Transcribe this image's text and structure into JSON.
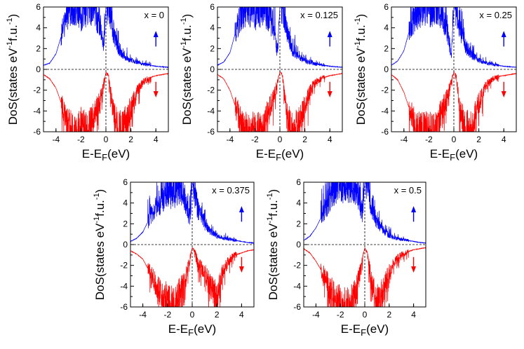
{
  "figure": {
    "xlabel_main": "E-E",
    "xlabel_sub": "F",
    "xlabel_unit": "(eV)",
    "ylabel_main": "DoS(states eV",
    "ylabel_sup1": "-1",
    "ylabel_mid": "f.u.",
    "ylabel_sup2": "-1",
    "ylabel_close": ")"
  },
  "colors": {
    "spin_up": "#0000ff",
    "spin_down": "#ff0000",
    "axis": "#000000"
  },
  "chart_data": [
    {
      "type": "line",
      "label": "x = 0",
      "xlim": [
        -5,
        5
      ],
      "ylim": [
        -6,
        6
      ],
      "xticks": [
        -4,
        -2,
        0,
        2,
        4
      ],
      "yticks": [
        -6,
        -4,
        -2,
        0,
        2,
        4,
        6
      ],
      "arrows": [
        "up",
        "down"
      ],
      "series": [
        {
          "color": "#0000ff",
          "x": [
            -5,
            -4.5,
            -4,
            -3.5,
            -3,
            -2.5,
            -2,
            -1.5,
            -1,
            -0.5,
            -0.2,
            0,
            0.2,
            0.5,
            1,
            1.5,
            2,
            2.5,
            3,
            3.5,
            4,
            4.5,
            5
          ],
          "y": [
            0.4,
            0.6,
            1.5,
            3.5,
            5.8,
            6,
            5.2,
            6,
            5.8,
            4.5,
            2.0,
            6,
            6,
            4.2,
            1.8,
            1.2,
            0.9,
            0.7,
            0.5,
            0.4,
            0.3,
            0.25,
            0.2
          ]
        },
        {
          "color": "#ff0000",
          "x": [
            -5,
            -4.5,
            -4,
            -3.5,
            -3,
            -2.5,
            -2,
            -1.5,
            -1,
            -0.5,
            -0.2,
            0,
            0.2,
            0.5,
            1,
            1.5,
            2,
            2.5,
            3,
            3.5,
            4,
            4.5,
            5
          ],
          "y": [
            -0.5,
            -0.9,
            -1.8,
            -3.5,
            -5.5,
            -6,
            -5.2,
            -6,
            -4.5,
            -3.0,
            -1.5,
            -0.3,
            -0.5,
            -3.5,
            -5.8,
            -5.0,
            -3.8,
            -2.0,
            -1.2,
            -0.8,
            -0.6,
            -0.5,
            -0.4
          ]
        }
      ]
    },
    {
      "type": "line",
      "label": "x = 0.125",
      "xlim": [
        -5,
        5
      ],
      "ylim": [
        -6,
        6
      ],
      "xticks": [
        -4,
        -2,
        0,
        2,
        4
      ],
      "yticks": [
        -6,
        -4,
        -2,
        0,
        2,
        4,
        6
      ],
      "arrows": [
        "up",
        "down"
      ],
      "series": [
        {
          "color": "#0000ff",
          "x": [
            -5,
            -4.5,
            -4,
            -3.5,
            -3,
            -2.5,
            -2,
            -1.5,
            -1,
            -0.5,
            -0.2,
            0,
            0.2,
            0.5,
            1,
            1.5,
            2,
            2.5,
            3,
            3.5,
            4,
            4.5,
            5
          ],
          "y": [
            0.4,
            0.7,
            1.6,
            3.8,
            5.6,
            6,
            5.4,
            6,
            5.5,
            4.0,
            1.5,
            6,
            6,
            4.0,
            1.9,
            1.2,
            0.8,
            0.6,
            0.5,
            0.4,
            0.3,
            0.25,
            0.2
          ]
        },
        {
          "color": "#ff0000",
          "x": [
            -5,
            -4.5,
            -4,
            -3.5,
            -3,
            -2.5,
            -2,
            -1.5,
            -1,
            -0.5,
            -0.2,
            0,
            0.2,
            0.5,
            1,
            1.5,
            2,
            2.5,
            3,
            3.5,
            4,
            4.5,
            5
          ],
          "y": [
            -0.5,
            -0.9,
            -2.0,
            -3.8,
            -5.6,
            -6,
            -5.5,
            -6,
            -4.2,
            -2.8,
            -1.3,
            -0.2,
            -0.6,
            -3.8,
            -5.9,
            -5.2,
            -3.5,
            -1.8,
            -1.1,
            -0.8,
            -0.6,
            -0.5,
            -0.4
          ]
        }
      ]
    },
    {
      "type": "line",
      "label": "x = 0.25",
      "xlim": [
        -5,
        5
      ],
      "ylim": [
        -6,
        6
      ],
      "xticks": [
        -4,
        -2,
        0,
        2,
        4
      ],
      "yticks": [
        -6,
        -4,
        -2,
        0,
        2,
        4,
        6
      ],
      "arrows": [
        "up",
        "down"
      ],
      "series": [
        {
          "color": "#0000ff",
          "x": [
            -5,
            -4.5,
            -4,
            -3.5,
            -3,
            -2.5,
            -2,
            -1.5,
            -1,
            -0.5,
            -0.2,
            0,
            0.2,
            0.5,
            1,
            1.5,
            2,
            2.5,
            3,
            3.5,
            4,
            4.5,
            5
          ],
          "y": [
            0.4,
            0.8,
            1.8,
            4.0,
            5.5,
            6,
            5.6,
            6,
            5.2,
            3.6,
            1.2,
            6,
            6,
            3.8,
            2.0,
            1.3,
            0.9,
            0.6,
            0.5,
            0.4,
            0.3,
            0.25,
            0.2
          ]
        },
        {
          "color": "#ff0000",
          "x": [
            -5,
            -4.5,
            -4,
            -3.5,
            -3,
            -2.5,
            -2,
            -1.5,
            -1,
            -0.5,
            -0.2,
            0,
            0.2,
            0.5,
            1,
            1.5,
            2,
            2.5,
            3,
            3.5,
            4,
            4.5,
            5
          ],
          "y": [
            -0.5,
            -1.0,
            -2.2,
            -4.0,
            -5.7,
            -6,
            -5.8,
            -6,
            -4.0,
            -2.5,
            -1.1,
            -0.2,
            -0.7,
            -4.0,
            -5.8,
            -5.0,
            -3.2,
            -1.7,
            -1.0,
            -0.7,
            -0.6,
            -0.5,
            -0.4
          ]
        }
      ]
    },
    {
      "type": "line",
      "label": "x = 0.375",
      "xlim": [
        -5,
        5
      ],
      "ylim": [
        -6,
        6
      ],
      "xticks": [
        -4,
        -2,
        0,
        2,
        4
      ],
      "yticks": [
        -6,
        -4,
        -2,
        0,
        2,
        4,
        6
      ],
      "arrows": [
        "up",
        "down"
      ],
      "series": [
        {
          "color": "#0000ff",
          "x": [
            -5,
            -4.5,
            -4,
            -3.5,
            -3,
            -2.5,
            -2,
            -1.5,
            -1,
            -0.5,
            -0.2,
            0,
            0.2,
            0.5,
            1,
            1.5,
            2,
            2.5,
            3,
            3.5,
            4,
            4.5,
            5
          ],
          "y": [
            0.3,
            0.6,
            1.2,
            2.4,
            3.5,
            4.2,
            5.2,
            4.8,
            5.6,
            3.8,
            2.5,
            6,
            5.0,
            3.2,
            2.0,
            1.2,
            0.8,
            0.6,
            0.5,
            0.4,
            0.3,
            0.2,
            0.15
          ]
        },
        {
          "color": "#ff0000",
          "x": [
            -5,
            -4.5,
            -4,
            -3.5,
            -3,
            -2.5,
            -2,
            -1.5,
            -1,
            -0.5,
            -0.2,
            0,
            0.2,
            0.5,
            1,
            1.5,
            2,
            2.5,
            3,
            3.5,
            4,
            4.5,
            5
          ],
          "y": [
            -0.6,
            -0.9,
            -1.4,
            -2.5,
            -3.6,
            -4.8,
            -5.2,
            -5.8,
            -4.6,
            -3.2,
            -1.5,
            -0.3,
            -0.6,
            -1.8,
            -2.6,
            -4.0,
            -5.2,
            -2.5,
            -1.5,
            -1.0,
            -0.8,
            -0.6,
            -0.5
          ]
        }
      ]
    },
    {
      "type": "line",
      "label": "x = 0.5",
      "xlim": [
        -5,
        5
      ],
      "ylim": [
        -6,
        6
      ],
      "xticks": [
        -4,
        -2,
        0,
        2,
        4
      ],
      "yticks": [
        -6,
        -4,
        -2,
        0,
        2,
        4,
        6
      ],
      "arrows": [
        "up",
        "down"
      ],
      "series": [
        {
          "color": "#0000ff",
          "x": [
            -5,
            -4.5,
            -4,
            -3.5,
            -3,
            -2.5,
            -2,
            -1.5,
            -1,
            -0.5,
            -0.2,
            0,
            0.2,
            0.5,
            1,
            1.5,
            2,
            2.5,
            3,
            3.5,
            4,
            4.5,
            5
          ],
          "y": [
            0.4,
            0.8,
            1.6,
            2.8,
            4.2,
            5.4,
            6,
            5.5,
            6,
            4.8,
            3.0,
            6,
            6,
            3.8,
            2.2,
            1.4,
            0.9,
            0.6,
            0.5,
            0.4,
            0.3,
            0.2,
            0.15
          ]
        },
        {
          "color": "#ff0000",
          "x": [
            -5,
            -4.5,
            -4,
            -3.5,
            -3,
            -2.5,
            -2,
            -1.5,
            -1,
            -0.5,
            -0.2,
            0,
            0.2,
            0.5,
            1,
            1.5,
            2,
            2.5,
            3,
            3.5,
            4,
            4.5,
            5
          ],
          "y": [
            -0.4,
            -0.8,
            -1.6,
            -2.6,
            -3.8,
            -5.0,
            -5.6,
            -6,
            -5.5,
            -3.4,
            -1.4,
            -0.3,
            -0.8,
            -3.2,
            -5.5,
            -4.4,
            -2.6,
            -1.5,
            -1.0,
            -0.7,
            -0.5,
            -0.4,
            -0.3
          ]
        }
      ]
    }
  ]
}
